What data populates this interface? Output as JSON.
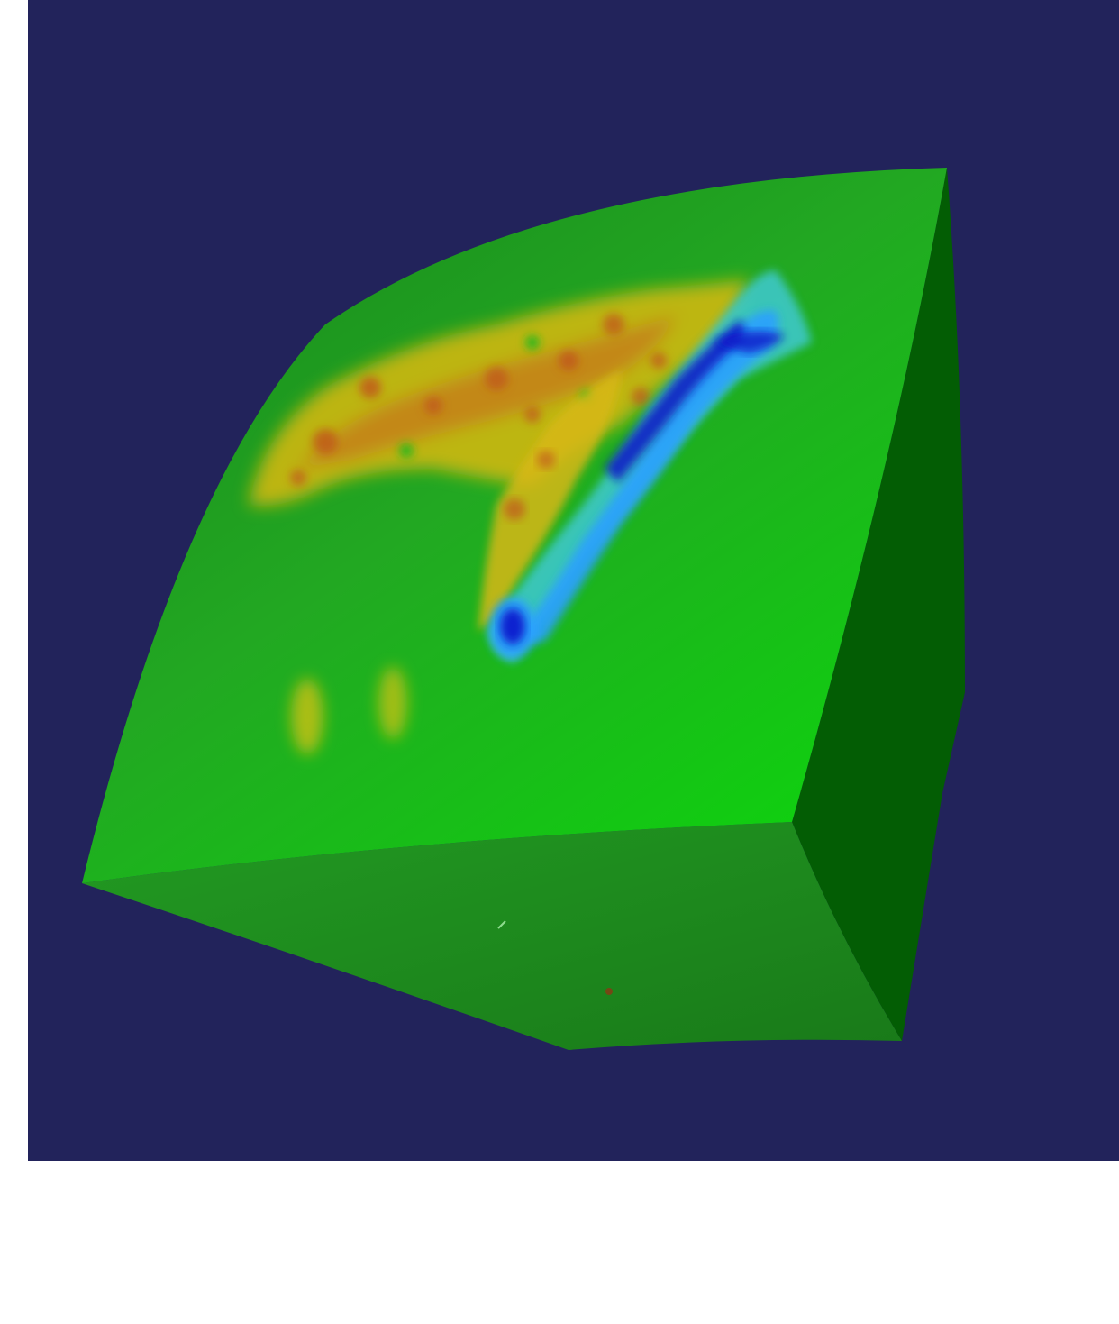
{
  "viewer": {
    "background_color": "#22235b",
    "page_background": "#ffffff"
  },
  "object": {
    "shape": "curved-cube-section",
    "colors": {
      "front_face_light": "#0fd10f",
      "front_face_dark": "#1b8f1d",
      "right_face": "#035d04",
      "bottom_face": "#1b7d1b",
      "bottom_face_light": "#209720"
    }
  },
  "colormap": {
    "name": "jet",
    "stops": [
      "#0000cc",
      "#28a0ff",
      "#30c8c8",
      "#0fd10f",
      "#e6c30a",
      "#c85a14"
    ],
    "features": [
      "warm-patch-upper-left",
      "diagonal-ridge",
      "cold-band",
      "cold-spot",
      "faint-streaks"
    ]
  }
}
